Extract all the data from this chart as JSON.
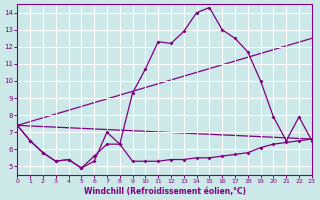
{
  "xlabel": "Windchill (Refroidissement éolien,°C)",
  "bg_color": "#cce8e8",
  "grid_color": "#ffffff",
  "line_color": "#800080",
  "xlim": [
    0,
    23
  ],
  "ylim": [
    4.5,
    14.5
  ],
  "yticks": [
    5,
    6,
    7,
    8,
    9,
    10,
    11,
    12,
    13,
    14
  ],
  "xticks": [
    0,
    1,
    2,
    3,
    4,
    5,
    6,
    7,
    8,
    9,
    10,
    11,
    12,
    13,
    14,
    15,
    16,
    17,
    18,
    19,
    20,
    21,
    22,
    23
  ],
  "line1_x": [
    0,
    1,
    2,
    3,
    4,
    5,
    6,
    7,
    8,
    9,
    10,
    11,
    12,
    13,
    14,
    15,
    16,
    17,
    18,
    19,
    20,
    21,
    22,
    23
  ],
  "line1_y": [
    7.4,
    6.5,
    5.8,
    5.3,
    5.4,
    4.9,
    5.3,
    7.0,
    6.3,
    9.3,
    10.7,
    12.3,
    12.2,
    12.9,
    14.0,
    14.3,
    13.0,
    12.5,
    11.7,
    10.0,
    7.9,
    6.5,
    7.9,
    6.5
  ],
  "line2_x": [
    0,
    1,
    2,
    3,
    4,
    5,
    6,
    7,
    8,
    9,
    10,
    11,
    12,
    13,
    14,
    15,
    16,
    17,
    18,
    19,
    20,
    21,
    22,
    23
  ],
  "line2_y": [
    7.4,
    6.5,
    5.8,
    5.3,
    5.4,
    4.9,
    5.6,
    6.3,
    6.3,
    5.3,
    5.3,
    5.3,
    5.4,
    5.4,
    5.5,
    5.5,
    5.6,
    5.7,
    5.8,
    6.1,
    6.3,
    6.4,
    6.5,
    6.6
  ],
  "line3_x": [
    0,
    23
  ],
  "line3_y": [
    7.4,
    12.5
  ],
  "line4_x": [
    0,
    23
  ],
  "line4_y": [
    7.4,
    6.6
  ]
}
